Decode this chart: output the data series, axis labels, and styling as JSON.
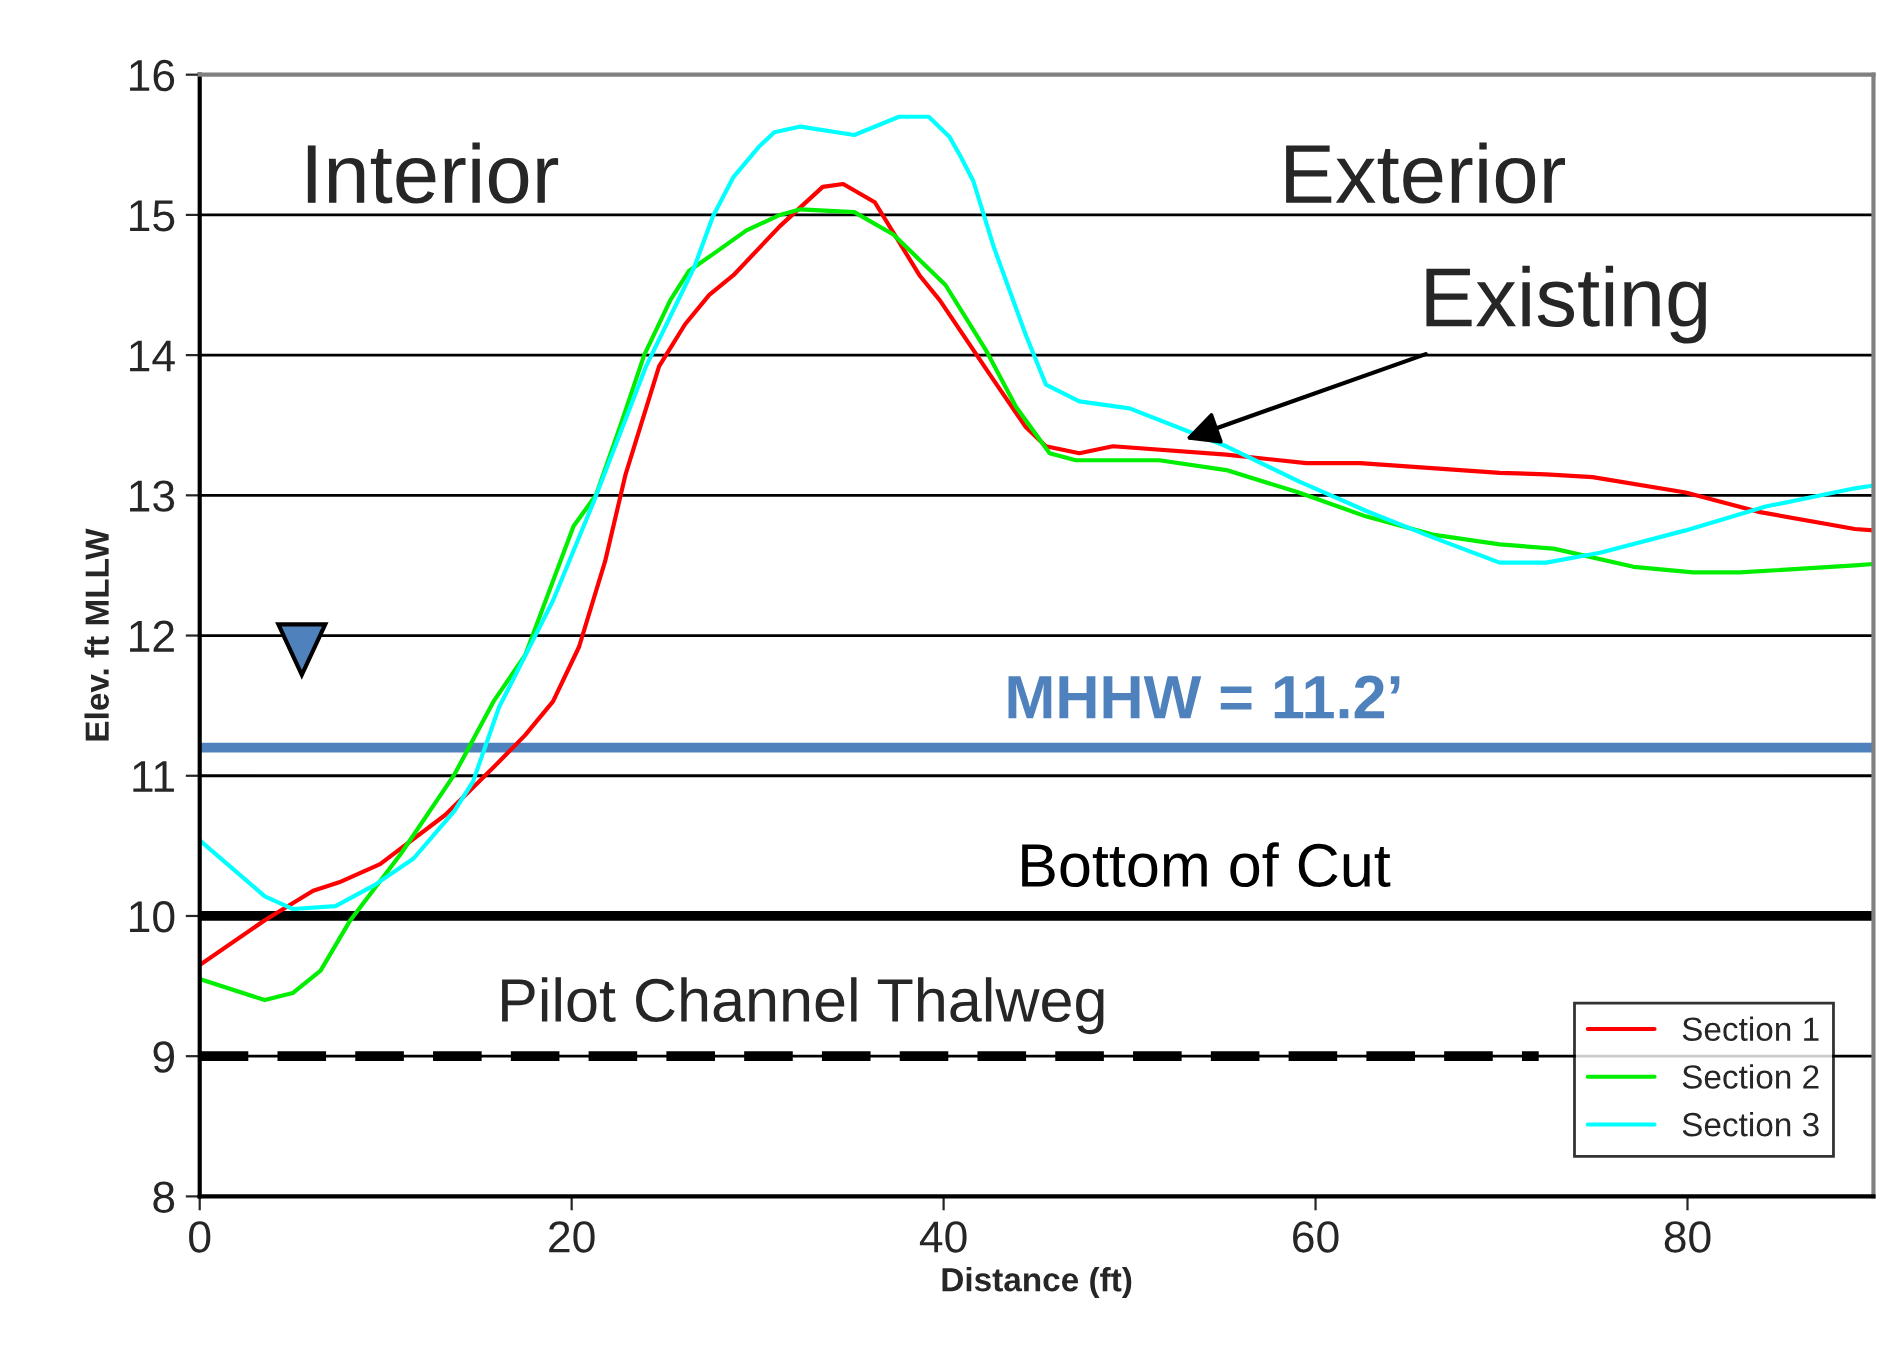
{
  "chart_data": {
    "type": "line",
    "xlabel": "Distance (ft)",
    "ylabel": "Elev. ft MLLW",
    "xlim": [
      0,
      90
    ],
    "xticks": [
      0,
      20,
      40,
      60,
      80
    ],
    "ylim": [
      8,
      16
    ],
    "yticks": [
      8,
      9,
      10,
      11,
      12,
      13,
      14,
      15,
      16
    ],
    "grid": "y",
    "legend": "bottom right",
    "line_style": "solid",
    "series": [
      {
        "name": "Section 1",
        "color": "#ff0000",
        "x": [
          0,
          3.5,
          6.1,
          7.5,
          9.7,
          13.2,
          15.8,
          17.5,
          19,
          20.4,
          21.8,
          22.9,
          24.7,
          26.1,
          27.4,
          28.7,
          31.2,
          33.5,
          34.6,
          36.3,
          38.7,
          39.8,
          42.7,
          44.4,
          45.5,
          47.3,
          49.1,
          55.2,
          59.5,
          62.4,
          69.9,
          72.4,
          74.9,
          79.9,
          83.9,
          89,
          90
        ],
        "values": [
          9.65,
          9.97,
          10.18,
          10.24,
          10.37,
          10.72,
          11.06,
          11.29,
          11.53,
          11.92,
          12.53,
          13.15,
          13.92,
          14.22,
          14.43,
          14.57,
          14.92,
          15.2,
          15.22,
          15.09,
          14.57,
          14.39,
          13.82,
          13.49,
          13.35,
          13.3,
          13.35,
          13.29,
          13.23,
          13.23,
          13.16,
          13.15,
          13.13,
          13.02,
          12.88,
          12.76,
          12.75
        ]
      },
      {
        "name": "Section 2",
        "color": "#00ee00",
        "x": [
          0,
          3.5,
          5,
          6.5,
          8.1,
          10.8,
          13.7,
          15.8,
          17.5,
          20.1,
          21.3,
          22.6,
          23.9,
          25.3,
          26.3,
          27.6,
          29.4,
          31.2,
          32.3,
          35.2,
          37.3,
          40.1,
          42.3,
          43.9,
          45.7,
          47.1,
          51.6,
          55.2,
          59.1,
          62.7,
          66.3,
          69.9,
          72.8,
          77.1,
          80.3,
          82.8,
          89,
          90
        ],
        "values": [
          9.55,
          9.4,
          9.45,
          9.61,
          9.97,
          10.44,
          11.01,
          11.53,
          11.86,
          12.78,
          13.0,
          13.49,
          14.0,
          14.39,
          14.6,
          14.72,
          14.89,
          15.0,
          15.04,
          15.02,
          14.86,
          14.5,
          14.03,
          13.63,
          13.3,
          13.25,
          13.25,
          13.18,
          13.02,
          12.85,
          12.72,
          12.65,
          12.62,
          12.49,
          12.45,
          12.45,
          12.5,
          12.51
        ]
      },
      {
        "name": "Section 3",
        "color": "#00ffff",
        "x": [
          0,
          3.5,
          5,
          7.3,
          9.4,
          11.5,
          13.7,
          14.7,
          16.1,
          19,
          21.2,
          24,
          26.6,
          27.6,
          28.7,
          30.1,
          30.9,
          32.3,
          35.2,
          37.6,
          39.2,
          40.3,
          40.9,
          41.6,
          42.7,
          44.4,
          45.5,
          47.3,
          50,
          55.2,
          59.1,
          62.7,
          66.3,
          69.9,
          72.4,
          75.3,
          79.9,
          84.2,
          89,
          90
        ],
        "values": [
          10.54,
          10.14,
          10.05,
          10.07,
          10.22,
          10.41,
          10.75,
          10.96,
          11.49,
          12.25,
          12.96,
          13.92,
          14.63,
          14.99,
          15.27,
          15.49,
          15.59,
          15.63,
          15.57,
          15.7,
          15.7,
          15.56,
          15.42,
          15.24,
          14.77,
          14.15,
          13.79,
          13.67,
          13.62,
          13.35,
          13.1,
          12.89,
          12.7,
          12.52,
          12.52,
          12.59,
          12.75,
          12.92,
          13.05,
          13.07
        ]
      },
      {
        "color": "#000000",
        "line_style": "dashed",
        "x": [
          0,
          72
        ],
        "values": [
          9,
          9
        ]
      }
    ],
    "ref_lines": [
      {
        "axis": "y",
        "value": 11.2,
        "label": "MHHW = 11.2’",
        "color": "#4f81bd"
      },
      {
        "axis": "y",
        "value": 10,
        "label": "Bottom of Cut",
        "color": "#000000"
      }
    ],
    "annotations": [
      "Interior",
      "Exterior",
      {
        "text": "Existing",
        "x": 53,
        "y": 13.4
      },
      "Pilot Channel Thalweg"
    ]
  }
}
